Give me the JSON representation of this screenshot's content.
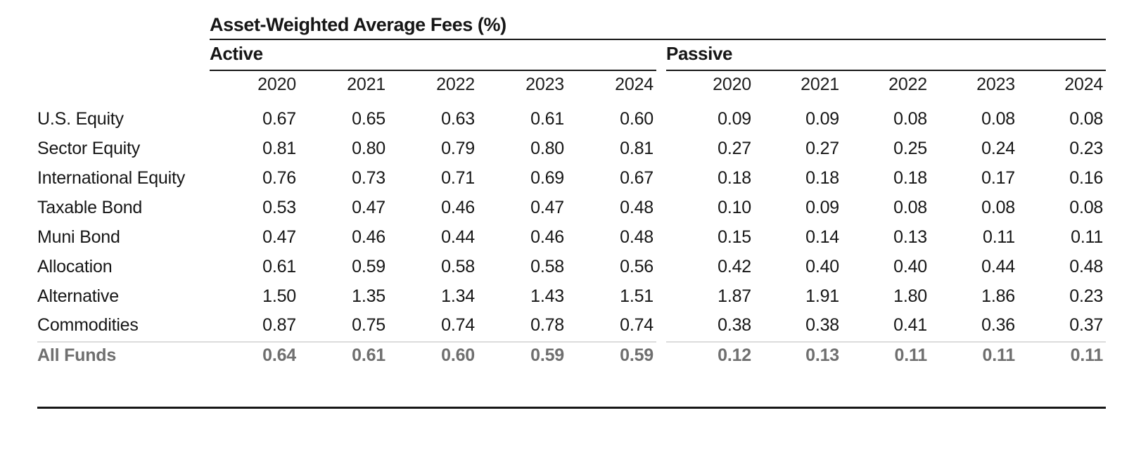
{
  "page": {
    "background": "#ffffff"
  },
  "table": {
    "title": "Asset-Weighted Average Fees (%)",
    "groups": [
      {
        "label": "Active"
      },
      {
        "label": "Passive"
      }
    ],
    "years": [
      "2020",
      "2021",
      "2022",
      "2023",
      "2024"
    ],
    "rows": [
      {
        "label": "U.S. Equity",
        "active": [
          "0.67",
          "0.65",
          "0.63",
          "0.61",
          "0.60"
        ],
        "passive": [
          "0.09",
          "0.09",
          "0.08",
          "0.08",
          "0.08"
        ]
      },
      {
        "label": "Sector Equity",
        "active": [
          "0.81",
          "0.80",
          "0.79",
          "0.80",
          "0.81"
        ],
        "passive": [
          "0.27",
          "0.27",
          "0.25",
          "0.24",
          "0.23"
        ]
      },
      {
        "label": "International Equity",
        "active": [
          "0.76",
          "0.73",
          "0.71",
          "0.69",
          "0.67"
        ],
        "passive": [
          "0.18",
          "0.18",
          "0.18",
          "0.17",
          "0.16"
        ]
      },
      {
        "label": "Taxable Bond",
        "active": [
          "0.53",
          "0.47",
          "0.46",
          "0.47",
          "0.48"
        ],
        "passive": [
          "0.10",
          "0.09",
          "0.08",
          "0.08",
          "0.08"
        ]
      },
      {
        "label": "Muni Bond",
        "active": [
          "0.47",
          "0.46",
          "0.44",
          "0.46",
          "0.48"
        ],
        "passive": [
          "0.15",
          "0.14",
          "0.13",
          "0.11",
          "0.11"
        ]
      },
      {
        "label": "Allocation",
        "active": [
          "0.61",
          "0.59",
          "0.58",
          "0.58",
          "0.56"
        ],
        "passive": [
          "0.42",
          "0.40",
          "0.40",
          "0.44",
          "0.48"
        ]
      },
      {
        "label": "Alternative",
        "active": [
          "1.50",
          "1.35",
          "1.34",
          "1.43",
          "1.51"
        ],
        "passive": [
          "1.87",
          "1.91",
          "1.80",
          "1.86",
          "0.23"
        ]
      },
      {
        "label": "Commodities",
        "active": [
          "0.87",
          "0.75",
          "0.74",
          "0.78",
          "0.74"
        ],
        "passive": [
          "0.38",
          "0.38",
          "0.41",
          "0.36",
          "0.37"
        ]
      }
    ],
    "total_row": {
      "label": "All Funds",
      "active": [
        "0.64",
        "0.61",
        "0.60",
        "0.59",
        "0.59"
      ],
      "passive": [
        "0.12",
        "0.13",
        "0.11",
        "0.11",
        "0.11"
      ]
    },
    "colors": {
      "text": "#161616",
      "total_text": "#6f6f6f",
      "rule_dark": "#161616",
      "rule_light": "#dcdcdc"
    }
  },
  "chart_data": {
    "type": "table",
    "title": "Asset-Weighted Average Fees (%)",
    "units": "percent",
    "column_groups": [
      "Active",
      "Passive"
    ],
    "years": [
      2020,
      2021,
      2022,
      2023,
      2024
    ],
    "row_labels": [
      "U.S. Equity",
      "Sector Equity",
      "International Equity",
      "Taxable Bond",
      "Muni Bond",
      "Allocation",
      "Alternative",
      "Commodities",
      "All Funds"
    ],
    "rows": [
      {
        "label": "U.S. Equity",
        "active": [
          0.67,
          0.65,
          0.63,
          0.61,
          0.6
        ],
        "passive": [
          0.09,
          0.09,
          0.08,
          0.08,
          0.08
        ]
      },
      {
        "label": "Sector Equity",
        "active": [
          0.81,
          0.8,
          0.79,
          0.8,
          0.81
        ],
        "passive": [
          0.27,
          0.27,
          0.25,
          0.24,
          0.23
        ]
      },
      {
        "label": "International Equity",
        "active": [
          0.76,
          0.73,
          0.71,
          0.69,
          0.67
        ],
        "passive": [
          0.18,
          0.18,
          0.18,
          0.17,
          0.16
        ]
      },
      {
        "label": "Taxable Bond",
        "active": [
          0.53,
          0.47,
          0.46,
          0.47,
          0.48
        ],
        "passive": [
          0.1,
          0.09,
          0.08,
          0.08,
          0.08
        ]
      },
      {
        "label": "Muni Bond",
        "active": [
          0.47,
          0.46,
          0.44,
          0.46,
          0.48
        ],
        "passive": [
          0.15,
          0.14,
          0.13,
          0.11,
          0.11
        ]
      },
      {
        "label": "Allocation",
        "active": [
          0.61,
          0.59,
          0.58,
          0.58,
          0.56
        ],
        "passive": [
          0.42,
          0.4,
          0.4,
          0.44,
          0.48
        ]
      },
      {
        "label": "Alternative",
        "active": [
          1.5,
          1.35,
          1.34,
          1.43,
          1.51
        ],
        "passive": [
          1.87,
          1.91,
          1.8,
          1.86,
          0.23
        ]
      },
      {
        "label": "Commodities",
        "active": [
          0.87,
          0.75,
          0.74,
          0.78,
          0.74
        ],
        "passive": [
          0.38,
          0.38,
          0.41,
          0.36,
          0.37
        ]
      },
      {
        "label": "All Funds",
        "active": [
          0.64,
          0.61,
          0.6,
          0.59,
          0.59
        ],
        "passive": [
          0.12,
          0.13,
          0.11,
          0.11,
          0.11
        ],
        "is_total": true
      }
    ]
  }
}
